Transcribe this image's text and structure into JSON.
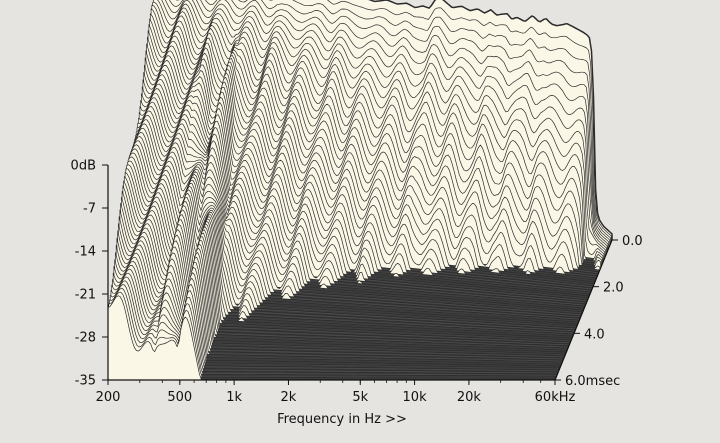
{
  "chart_data": {
    "type": "waterfall-3d",
    "title": "",
    "xlabel": "Frequency in Hz >>",
    "ylabel": "",
    "zlabel": "",
    "x_scale": "log",
    "xlim": [
      200,
      60000
    ],
    "x_ticks": [
      {
        "value": 200,
        "label": "200"
      },
      {
        "value": 500,
        "label": "500"
      },
      {
        "value": 1000,
        "label": "1k"
      },
      {
        "value": 2000,
        "label": "2k"
      },
      {
        "value": 5000,
        "label": "5k"
      },
      {
        "value": 10000,
        "label": "10k"
      },
      {
        "value": 20000,
        "label": "20k"
      },
      {
        "value": 60000,
        "label": "60kHz"
      }
    ],
    "ylim": [
      -35,
      0
    ],
    "y_ticks": [
      {
        "value": 0,
        "label": "0dB"
      },
      {
        "value": -7,
        "label": "-7"
      },
      {
        "value": -14,
        "label": "-14"
      },
      {
        "value": -21,
        "label": "-21"
      },
      {
        "value": -28,
        "label": "-28"
      },
      {
        "value": -35,
        "label": "-35"
      }
    ],
    "zlim": [
      0,
      6.0
    ],
    "z_ticks": [
      {
        "value": 0.0,
        "label": "0.0"
      },
      {
        "value": 2.0,
        "label": "2.0"
      },
      {
        "value": 4.0,
        "label": "4.0"
      },
      {
        "value": 6.0,
        "label": "6.0msec"
      }
    ],
    "series": [
      {
        "time_ms": 0.0,
        "points": [
          [
            200,
            -3
          ],
          [
            250,
            -2.5
          ],
          [
            300,
            -2
          ],
          [
            350,
            -2.2
          ],
          [
            400,
            -3
          ],
          [
            450,
            -2.5
          ],
          [
            500,
            -2
          ],
          [
            600,
            -2.5
          ],
          [
            700,
            -2
          ],
          [
            800,
            -2.6
          ],
          [
            900,
            -2
          ],
          [
            1000,
            -2.5
          ],
          [
            1200,
            -2
          ],
          [
            1400,
            -2.5
          ],
          [
            1600,
            -2
          ],
          [
            1800,
            -2.6
          ],
          [
            2000,
            -2
          ],
          [
            2300,
            -2.4
          ],
          [
            2600,
            -2.2
          ],
          [
            3000,
            -2.6
          ],
          [
            3500,
            -2
          ],
          [
            4000,
            -2.4
          ],
          [
            4500,
            -2
          ],
          [
            5000,
            -2.5
          ],
          [
            5500,
            -2
          ],
          [
            6000,
            -2.2
          ],
          [
            6500,
            -0.5
          ],
          [
            7000,
            -0.3
          ],
          [
            8000,
            -1.5
          ],
          [
            9000,
            -1
          ],
          [
            10000,
            -1.5
          ],
          [
            11000,
            -1
          ],
          [
            12000,
            -1.5
          ],
          [
            13000,
            -0.8
          ],
          [
            14000,
            -1.5
          ],
          [
            15000,
            -1.2
          ],
          [
            16000,
            -1
          ],
          [
            17000,
            -1.8
          ],
          [
            18000,
            -1.3
          ],
          [
            20000,
            -1.8
          ],
          [
            22000,
            -0.6
          ],
          [
            24000,
            -1.5
          ],
          [
            26000,
            -0.7
          ],
          [
            28000,
            -1.5
          ],
          [
            30000,
            -1.6
          ],
          [
            34000,
            -1
          ],
          [
            38000,
            -1.5
          ],
          [
            42000,
            -2
          ],
          [
            45000,
            -2.5
          ],
          [
            47000,
            -6
          ],
          [
            49000,
            -30
          ],
          [
            51000,
            -32
          ],
          [
            54000,
            -33
          ],
          [
            60000,
            -34
          ]
        ]
      }
    ]
  }
}
